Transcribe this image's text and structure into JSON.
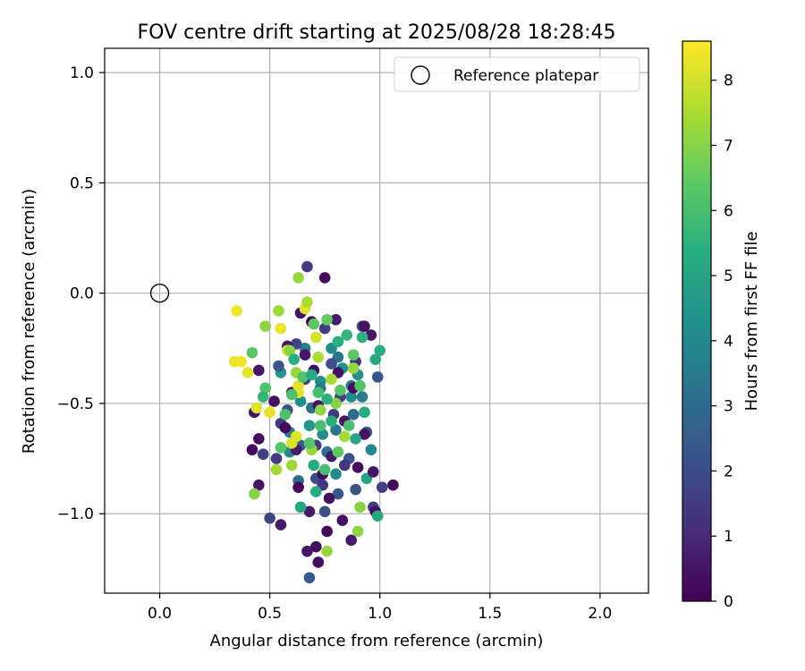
{
  "chart_data": {
    "type": "scatter",
    "title": "FOV centre drift starting at 2025/08/28 18:28:45",
    "xlabel": "Angular distance from reference (arcmin)",
    "ylabel": "Rotation from reference (arcmin)",
    "xlim": [
      -0.25,
      2.22
    ],
    "ylim": [
      -1.36,
      1.11
    ],
    "xticks": [
      "0.0",
      "0.5",
      "1.0",
      "1.5",
      "2.0"
    ],
    "xtick_values": [
      0.0,
      0.5,
      1.0,
      1.5,
      2.0
    ],
    "yticks": [
      "1.0",
      "0.5",
      "0.0",
      "−0.5",
      "−1.0"
    ],
    "ytick_values": [
      1.0,
      0.5,
      0.0,
      -0.5,
      -1.0
    ],
    "grid": true,
    "legend": {
      "placement": "top-right",
      "label": "Reference platepar"
    },
    "reference_point": {
      "x": 0.0,
      "y": 0.0
    },
    "colorbar": {
      "label": "Hours from first FF file",
      "range": [
        0,
        8.6
      ],
      "ticks": [
        "0",
        "1",
        "2",
        "3",
        "4",
        "5",
        "6",
        "7",
        "8"
      ],
      "tick_values": [
        0,
        1,
        2,
        3,
        4,
        5,
        6,
        7,
        8
      ],
      "colormap": "viridis"
    },
    "points": [
      {
        "x": 0.35,
        "y": -0.08,
        "c": 8.4
      },
      {
        "x": 0.34,
        "y": -0.31,
        "c": 8.4
      },
      {
        "x": 0.37,
        "y": -0.31,
        "c": 8.4
      },
      {
        "x": 0.4,
        "y": -0.36,
        "c": 8.3
      },
      {
        "x": 0.44,
        "y": -0.52,
        "c": 8.2
      },
      {
        "x": 0.5,
        "y": -0.54,
        "c": 8.3
      },
      {
        "x": 0.55,
        "y": -0.16,
        "c": 8.4
      },
      {
        "x": 0.58,
        "y": -0.26,
        "c": 8.3
      },
      {
        "x": 0.63,
        "y": -0.42,
        "c": 8.3
      },
      {
        "x": 0.66,
        "y": -0.07,
        "c": 8.2
      },
      {
        "x": 0.71,
        "y": -0.2,
        "c": 8.1
      },
      {
        "x": 0.62,
        "y": -0.65,
        "c": 8.2
      },
      {
        "x": 0.6,
        "y": -0.68,
        "c": 8.1
      },
      {
        "x": 0.63,
        "y": -0.45,
        "c": 8.2
      },
      {
        "x": 0.54,
        "y": -0.08,
        "c": 7.3
      },
      {
        "x": 0.48,
        "y": -0.15,
        "c": 7.1
      },
      {
        "x": 0.63,
        "y": 0.07,
        "c": 7.2
      },
      {
        "x": 0.67,
        "y": -0.04,
        "c": 7.5
      },
      {
        "x": 0.43,
        "y": -0.91,
        "c": 7.0
      },
      {
        "x": 0.53,
        "y": -0.8,
        "c": 7.4
      },
      {
        "x": 0.76,
        "y": -1.17,
        "c": 7.2
      },
      {
        "x": 0.9,
        "y": -1.08,
        "c": 7.1
      },
      {
        "x": 0.91,
        "y": -0.97,
        "c": 7.0
      },
      {
        "x": 0.6,
        "y": -0.78,
        "c": 7.3
      },
      {
        "x": 0.69,
        "y": -0.71,
        "c": 7.2
      },
      {
        "x": 0.84,
        "y": -0.65,
        "c": 7.4
      },
      {
        "x": 0.8,
        "y": -0.5,
        "c": 7.0
      },
      {
        "x": 0.72,
        "y": -0.29,
        "c": 7.5
      },
      {
        "x": 0.62,
        "y": -0.36,
        "c": 7.3
      },
      {
        "x": 0.59,
        "y": -0.26,
        "c": 7.0
      },
      {
        "x": 0.88,
        "y": -0.34,
        "c": 7.2
      },
      {
        "x": 0.73,
        "y": -0.53,
        "c": 7.1
      },
      {
        "x": 0.78,
        "y": -0.39,
        "c": 7.4
      },
      {
        "x": 0.42,
        "y": -0.27,
        "c": 6.3
      },
      {
        "x": 0.48,
        "y": -0.43,
        "c": 6.2
      },
      {
        "x": 0.57,
        "y": -0.55,
        "c": 6.1
      },
      {
        "x": 0.7,
        "y": -0.14,
        "c": 6.4
      },
      {
        "x": 0.76,
        "y": -0.12,
        "c": 6.5
      },
      {
        "x": 0.65,
        "y": -0.38,
        "c": 6.2
      },
      {
        "x": 0.72,
        "y": -0.45,
        "c": 6.0
      },
      {
        "x": 0.82,
        "y": -0.44,
        "c": 6.3
      },
      {
        "x": 0.86,
        "y": -0.6,
        "c": 6.1
      },
      {
        "x": 0.68,
        "y": -0.68,
        "c": 6.2
      },
      {
        "x": 0.75,
        "y": -0.8,
        "c": 6.0
      },
      {
        "x": 0.55,
        "y": -0.7,
        "c": 6.3
      },
      {
        "x": 0.88,
        "y": -0.28,
        "c": 6.4
      },
      {
        "x": 0.91,
        "y": -0.42,
        "c": 6.2
      },
      {
        "x": 0.6,
        "y": -0.46,
        "c": 6.1
      },
      {
        "x": 0.81,
        "y": -0.72,
        "c": 6.4
      },
      {
        "x": 0.73,
        "y": -0.6,
        "c": 6.0
      },
      {
        "x": 0.47,
        "y": -0.47,
        "c": 5.6
      },
      {
        "x": 0.61,
        "y": -0.3,
        "c": 5.4
      },
      {
        "x": 0.71,
        "y": -0.9,
        "c": 5.3
      },
      {
        "x": 0.64,
        "y": -0.97,
        "c": 5.1
      },
      {
        "x": 0.81,
        "y": -0.22,
        "c": 5.4
      },
      {
        "x": 0.92,
        "y": -0.2,
        "c": 5.5
      },
      {
        "x": 0.98,
        "y": -0.3,
        "c": 5.2
      },
      {
        "x": 1.0,
        "y": -0.26,
        "c": 5.3
      },
      {
        "x": 0.93,
        "y": -0.54,
        "c": 5.2
      },
      {
        "x": 0.89,
        "y": -0.66,
        "c": 5.1
      },
      {
        "x": 0.76,
        "y": -0.48,
        "c": 5.5
      },
      {
        "x": 0.69,
        "y": -0.37,
        "c": 5.3
      },
      {
        "x": 0.94,
        "y": -0.84,
        "c": 5.0
      },
      {
        "x": 0.7,
        "y": -0.78,
        "c": 5.2
      },
      {
        "x": 0.99,
        "y": -1.01,
        "c": 5.1
      },
      {
        "x": 0.78,
        "y": -0.58,
        "c": 5.4
      },
      {
        "x": 0.85,
        "y": -0.19,
        "c": 5.6
      },
      {
        "x": 0.55,
        "y": -0.36,
        "c": 4.4
      },
      {
        "x": 0.64,
        "y": -0.49,
        "c": 4.3
      },
      {
        "x": 0.74,
        "y": -0.64,
        "c": 4.2
      },
      {
        "x": 0.83,
        "y": -0.34,
        "c": 4.3
      },
      {
        "x": 0.96,
        "y": -0.71,
        "c": 4.0
      },
      {
        "x": 0.87,
        "y": -0.47,
        "c": 4.1
      },
      {
        "x": 0.78,
        "y": -0.25,
        "c": 4.2
      },
      {
        "x": 0.68,
        "y": -0.6,
        "c": 4.4
      },
      {
        "x": 0.59,
        "y": -0.72,
        "c": 4.0
      },
      {
        "x": 0.9,
        "y": -0.37,
        "c": 4.3
      },
      {
        "x": 0.8,
        "y": -0.82,
        "c": 4.1
      },
      {
        "x": 0.73,
        "y": -0.4,
        "c": 4.2
      },
      {
        "x": 0.66,
        "y": -0.25,
        "c": 3.6
      },
      {
        "x": 0.8,
        "y": -0.62,
        "c": 3.3
      },
      {
        "x": 0.87,
        "y": -0.42,
        "c": 3.5
      },
      {
        "x": 0.69,
        "y": -0.52,
        "c": 3.2
      },
      {
        "x": 0.59,
        "y": -0.63,
        "c": 3.4
      },
      {
        "x": 0.76,
        "y": -0.72,
        "c": 3.1
      },
      {
        "x": 0.92,
        "y": -0.47,
        "c": 3.6
      },
      {
        "x": 0.81,
        "y": -0.29,
        "c": 3.3
      },
      {
        "x": 0.73,
        "y": -0.43,
        "c": 3.4
      },
      {
        "x": 0.63,
        "y": -0.85,
        "c": 3.2
      },
      {
        "x": 0.88,
        "y": -0.55,
        "c": 3.0
      },
      {
        "x": 0.68,
        "y": -1.29,
        "c": 2.4
      },
      {
        "x": 0.54,
        "y": -0.33,
        "c": 2.3
      },
      {
        "x": 0.58,
        "y": -0.53,
        "c": 2.2
      },
      {
        "x": 0.81,
        "y": -0.91,
        "c": 2.3
      },
      {
        "x": 0.89,
        "y": -0.89,
        "c": 2.2
      },
      {
        "x": 0.99,
        "y": -0.38,
        "c": 2.3
      },
      {
        "x": 0.75,
        "y": -0.99,
        "c": 2.1
      },
      {
        "x": 0.64,
        "y": -0.69,
        "c": 2.4
      },
      {
        "x": 0.71,
        "y": -0.84,
        "c": 2.0
      },
      {
        "x": 0.86,
        "y": -0.75,
        "c": 2.2
      },
      {
        "x": 0.94,
        "y": -0.63,
        "c": 2.4
      },
      {
        "x": 0.78,
        "y": -0.32,
        "c": 2.1
      },
      {
        "x": 0.67,
        "y": 0.12,
        "c": 1.5
      },
      {
        "x": 0.5,
        "y": -1.02,
        "c": 1.7
      },
      {
        "x": 0.47,
        "y": -0.73,
        "c": 1.6
      },
      {
        "x": 0.55,
        "y": -0.59,
        "c": 1.4
      },
      {
        "x": 0.75,
        "y": -0.16,
        "c": 1.5
      },
      {
        "x": 0.92,
        "y": -0.15,
        "c": 1.7
      },
      {
        "x": 1.01,
        "y": -0.88,
        "c": 1.6
      },
      {
        "x": 0.97,
        "y": -0.97,
        "c": 1.5
      },
      {
        "x": 0.84,
        "y": -0.78,
        "c": 1.3
      },
      {
        "x": 0.66,
        "y": -0.39,
        "c": 1.6
      },
      {
        "x": 0.79,
        "y": -0.55,
        "c": 1.4
      },
      {
        "x": 0.71,
        "y": -0.69,
        "c": 1.5
      },
      {
        "x": 0.89,
        "y": -0.31,
        "c": 1.2
      },
      {
        "x": 0.62,
        "y": -0.23,
        "c": 1.7
      },
      {
        "x": 0.74,
        "y": -0.87,
        "c": 1.3
      },
      {
        "x": 0.53,
        "y": -0.75,
        "c": 1.5
      },
      {
        "x": 0.82,
        "y": -0.47,
        "c": 1.6
      },
      {
        "x": 0.75,
        "y": 0.07,
        "c": 0.3
      },
      {
        "x": 0.64,
        "y": -0.09,
        "c": 0.4
      },
      {
        "x": 0.69,
        "y": -0.13,
        "c": 0.2
      },
      {
        "x": 0.58,
        "y": -0.24,
        "c": 0.6
      },
      {
        "x": 0.45,
        "y": -0.35,
        "c": 0.5
      },
      {
        "x": 0.43,
        "y": -0.54,
        "c": 0.4
      },
      {
        "x": 0.45,
        "y": -0.66,
        "c": 0.3
      },
      {
        "x": 0.42,
        "y": -0.71,
        "c": 0.2
      },
      {
        "x": 0.45,
        "y": -0.87,
        "c": 0.5
      },
      {
        "x": 0.55,
        "y": -1.05,
        "c": 0.6
      },
      {
        "x": 0.71,
        "y": -1.15,
        "c": 0.4
      },
      {
        "x": 0.72,
        "y": -1.22,
        "c": 0.3
      },
      {
        "x": 0.67,
        "y": -1.17,
        "c": 0.5
      },
      {
        "x": 0.76,
        "y": -1.08,
        "c": 0.2
      },
      {
        "x": 0.83,
        "y": -1.03,
        "c": 0.4
      },
      {
        "x": 0.87,
        "y": -1.12,
        "c": 0.6
      },
      {
        "x": 0.98,
        "y": -0.99,
        "c": 0.3
      },
      {
        "x": 0.97,
        "y": -0.81,
        "c": 0.5
      },
      {
        "x": 0.93,
        "y": -0.64,
        "c": 0.4
      },
      {
        "x": 1.06,
        "y": -0.87,
        "c": 0.2
      },
      {
        "x": 0.96,
        "y": -0.19,
        "c": 0.5
      },
      {
        "x": 0.93,
        "y": -0.15,
        "c": 0.4
      },
      {
        "x": 0.8,
        "y": -0.12,
        "c": 0.6
      },
      {
        "x": 0.7,
        "y": -0.35,
        "c": 0.3
      },
      {
        "x": 0.6,
        "y": -0.45,
        "c": 0.5
      },
      {
        "x": 0.63,
        "y": -0.88,
        "c": 0.2
      },
      {
        "x": 0.77,
        "y": -0.93,
        "c": 0.4
      },
      {
        "x": 0.68,
        "y": -0.99,
        "c": 0.6
      },
      {
        "x": 0.9,
        "y": -0.79,
        "c": 0.3
      },
      {
        "x": 0.84,
        "y": -0.58,
        "c": 0.5
      },
      {
        "x": 0.72,
        "y": -0.51,
        "c": 0.4
      },
      {
        "x": 0.57,
        "y": -0.61,
        "c": 0.2
      },
      {
        "x": 0.78,
        "y": -0.74,
        "c": 0.6
      },
      {
        "x": 0.66,
        "y": -0.28,
        "c": 0.5
      },
      {
        "x": 0.88,
        "y": -0.43,
        "c": 0.3
      },
      {
        "x": 0.52,
        "y": -0.49,
        "c": 0.4
      },
      {
        "x": 0.74,
        "y": -0.82,
        "c": 0.2
      },
      {
        "x": 0.62,
        "y": -0.71,
        "c": 0.6
      },
      {
        "x": 0.81,
        "y": -0.36,
        "c": 0.4
      }
    ]
  }
}
